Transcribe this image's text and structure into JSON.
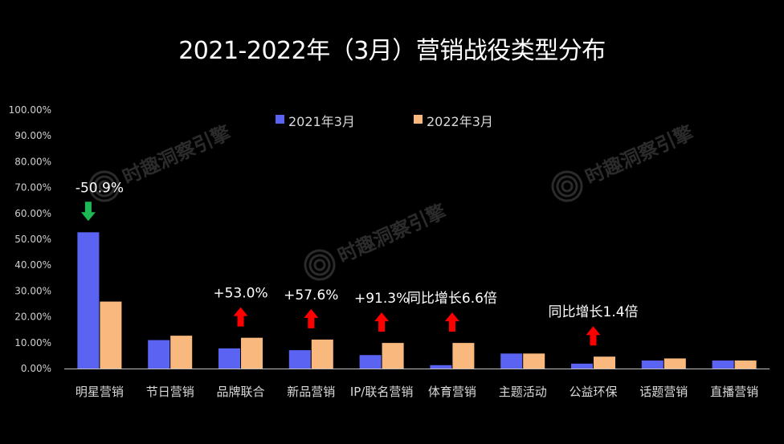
{
  "chart_data": {
    "type": "bar",
    "title": "2021-2022年（3月）营销战役类型分布",
    "categories": [
      "明星营销",
      "节日营销",
      "品牌联合",
      "新品营销",
      "IP/联名营销",
      "体育营销",
      "主题活动",
      "公益环保",
      "话题营销",
      "直播营销"
    ],
    "series": [
      {
        "name": "2021年3月",
        "color": "#5B63F2",
        "values": [
          52.7,
          11.0,
          7.8,
          7.1,
          5.2,
          1.3,
          5.8,
          1.9,
          3.1,
          3.1
        ]
      },
      {
        "name": "2022年3月",
        "color": "#F9B97E",
        "values": [
          25.9,
          12.7,
          11.9,
          11.2,
          9.9,
          9.9,
          5.8,
          4.6,
          3.9,
          3.1
        ]
      }
    ],
    "yticks": [
      "0.00%",
      "10.00%",
      "20.00%",
      "30.00%",
      "40.00%",
      "50.00%",
      "60.00%",
      "70.00%",
      "80.00%",
      "90.00%",
      "100.00%"
    ],
    "ylim": [
      0,
      100
    ],
    "legend_position": "top-center",
    "annotations": [
      {
        "category": "明星营销",
        "text": "-50.9%",
        "arrow": "down",
        "arrow_color": "#1DB954"
      },
      {
        "category": "品牌联合",
        "text": "+53.0%",
        "arrow": "up",
        "arrow_color": "#FF0000"
      },
      {
        "category": "新品营销",
        "text": "+57.6%",
        "arrow": "up",
        "arrow_color": "#FF0000"
      },
      {
        "category": "IP/联名营销",
        "text": "+91.3%",
        "arrow": "up",
        "arrow_color": "#FF0000"
      },
      {
        "category": "体育营销",
        "text": "同比增长6.6倍",
        "arrow": "up",
        "arrow_color": "#FF0000"
      },
      {
        "category": "公益环保",
        "text": "同比增长1.4倍",
        "arrow": "up",
        "arrow_color": "#FF0000"
      }
    ]
  },
  "watermark": {
    "text": "时趣洞察引擎",
    "icon": "concentric-circles-logo-icon"
  }
}
